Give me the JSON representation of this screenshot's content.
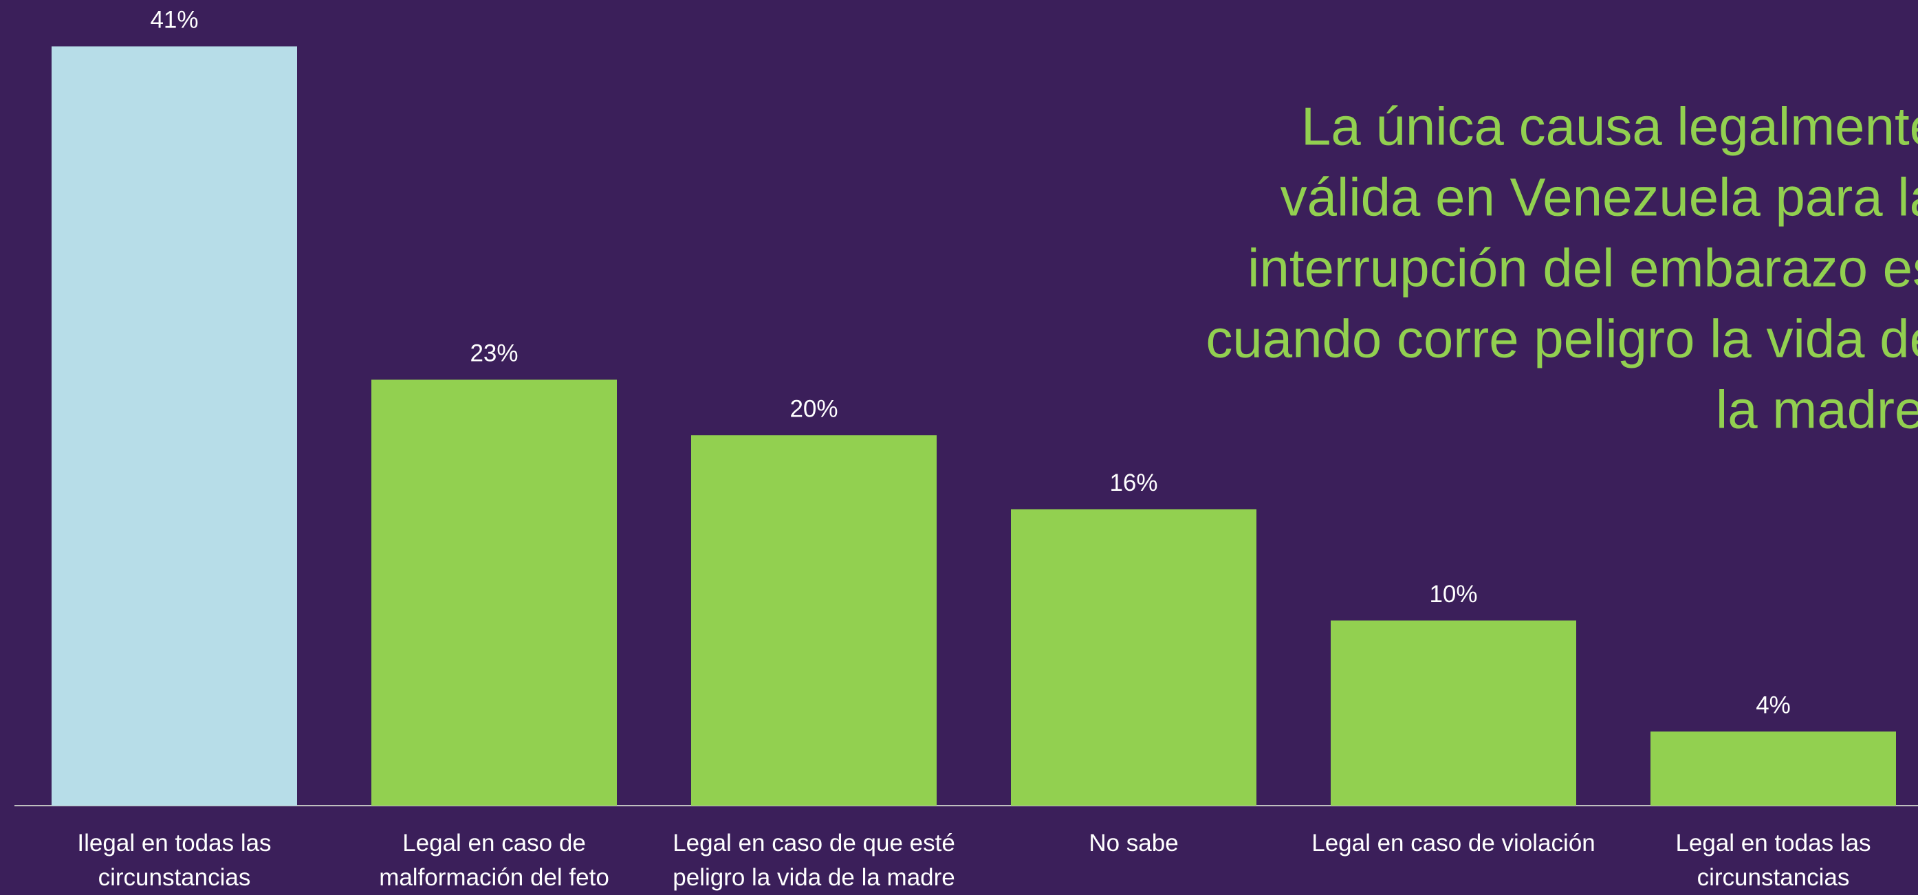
{
  "chart_data": {
    "type": "bar",
    "categories": [
      "Ilegal en todas las circunstancias",
      "Legal en caso de malformación del feto",
      "Legal en caso de que esté peligro la vida de la madre",
      "No sabe",
      "Legal en caso de violación",
      "Legal en todas las circunstancias"
    ],
    "values": [
      41,
      23,
      20,
      16,
      10,
      4
    ],
    "value_labels": [
      "41%",
      "23%",
      "20%",
      "16%",
      "10%",
      "4%"
    ],
    "colors": [
      "#b7dde8",
      "#92d050",
      "#92d050",
      "#92d050",
      "#92d050",
      "#92d050"
    ],
    "annotation": [
      "La única causa legalmente",
      "válida en Venezuela para la",
      "interrupción del embarazo es",
      "cuando corre peligro la vida de",
      "la madre."
    ],
    "annotation_color": "#92d050"
  }
}
